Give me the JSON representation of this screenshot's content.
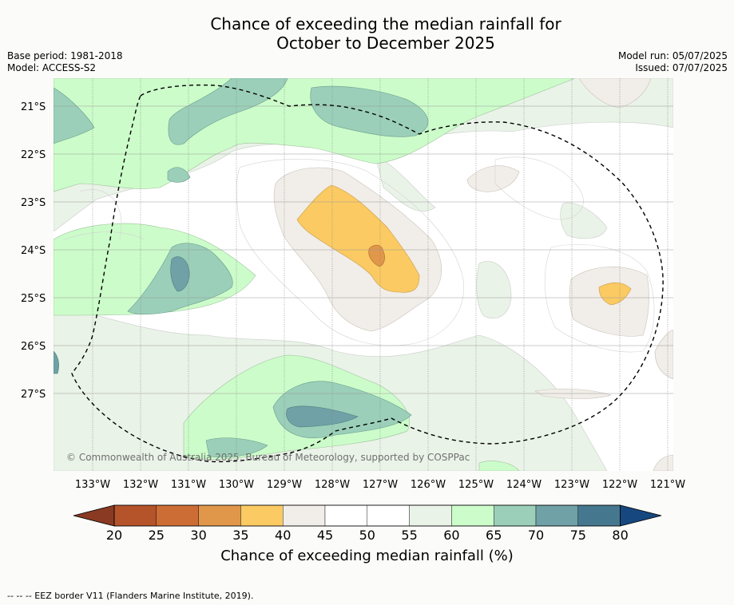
{
  "title_line1": "Chance of exceeding the median rainfall for",
  "title_line2": "October to December 2025",
  "base_period": "Base period: 1981-2018",
  "model": "Model: ACCESS-S2",
  "model_run": "Model run: 05/07/2025",
  "issued": "Issued: 07/07/2025",
  "copyright": "© Commonwealth of Australia 2025, Bureau of Meteorology, supported by COSPPac",
  "lon_labels": [
    "133°W",
    "132°W",
    "131°W",
    "130°W",
    "129°W",
    "128°W",
    "127°W",
    "126°W",
    "125°W",
    "124°W",
    "123°W",
    "122°W",
    "121°W"
  ],
  "lat_labels": [
    "21°S",
    "22°S",
    "23°S",
    "24°S",
    "25°S",
    "26°S",
    "27°S"
  ],
  "colorbar": {
    "label": "Chance of exceeding median rainfall (%)",
    "ticks": [
      "20",
      "25",
      "30",
      "35",
      "40",
      "45",
      "50",
      "55",
      "60",
      "65",
      "70",
      "75",
      "80"
    ],
    "colors": [
      "#b5532a",
      "#cc6d35",
      "#e0974a",
      "#fbca63",
      "#f1ede8",
      "#ffffff",
      "#ffffff",
      "#eaf3e8",
      "#ccfcca",
      "#9bcfb9",
      "#6fa1a6",
      "#45788f"
    ],
    "under_color": "#8a3a22",
    "over_color": "#16477f"
  },
  "footer": "--  --  -- EEZ border V11 (Flanders Marine Institute, 2019)."
}
